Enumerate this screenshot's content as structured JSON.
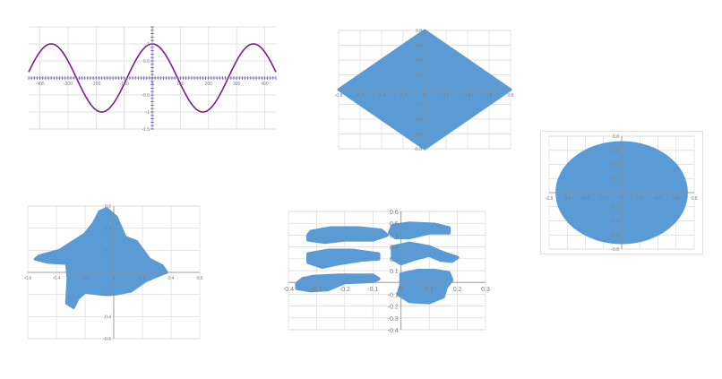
{
  "colors": {
    "sine": "#7b1f8a",
    "sine_axis_marks": "#6a5acd",
    "fill": "#5b9bd5",
    "grid": "#d9d9d9"
  },
  "chart_data": [
    {
      "id": "sine",
      "type": "line",
      "title": "",
      "series": [
        {
          "name": "",
          "function": "sin(2*pi*x/360 + pi/2)"
        }
      ],
      "xlim": [
        -440,
        440
      ],
      "ylim": [
        -1.5,
        1.5
      ],
      "xticks": [
        -400,
        -300,
        -200,
        -100,
        0,
        100,
        200,
        300,
        400
      ],
      "xtick_labels": [
        "-400",
        "-300",
        "-200",
        "-100",
        "0",
        "100",
        "200",
        "300",
        "400"
      ],
      "yticks": [
        -1.5,
        -1,
        -0.5,
        0.5,
        1
      ],
      "ytick_labels": [
        "-1.5",
        "-1",
        "-0.5",
        "0.5",
        "1"
      ],
      "grid": true,
      "dense_axis_markers": true
    },
    {
      "id": "diamond",
      "type": "area",
      "title": "",
      "shape": [
        [
          0,
          0.8
        ],
        [
          0.8,
          0
        ],
        [
          0,
          -0.8
        ],
        [
          -0.8,
          0
        ]
      ],
      "xlim": [
        -0.8,
        0.8
      ],
      "ylim": [
        -0.8,
        0.8
      ],
      "xticks": [
        -0.8,
        -0.6,
        -0.4,
        -0.2,
        0,
        0.2,
        0.4,
        0.6,
        0.8
      ],
      "xtick_labels": [
        "-0.8",
        "-0.6",
        "-0.4",
        "-0.2",
        "0",
        "0.2",
        "0.4",
        "0.6",
        "0.8"
      ],
      "yticks": [
        0.8,
        0.6,
        0.4,
        0.2,
        -0.2,
        -0.4,
        -0.6,
        -0.8
      ],
      "ytick_labels": [
        "0.8",
        "0.6",
        "0.4",
        "0.2",
        "-0.2",
        "-0.4",
        "-0.6",
        "-0.8"
      ],
      "grid": true
    },
    {
      "id": "circle",
      "type": "area",
      "title": "",
      "shape_circle": {
        "cx": 0,
        "cy": 0,
        "r": 0.73
      },
      "xlim": [
        -0.8,
        0.8
      ],
      "ylim": [
        -0.8,
        0.8
      ],
      "xticks": [
        -0.8,
        -0.6,
        -0.4,
        -0.2,
        0,
        0.2,
        0.4,
        0.6,
        0.8
      ],
      "xtick_labels": [
        "-0.8",
        "-0.6",
        "-0.4",
        "-0.2",
        "0",
        "0.2",
        "0.4",
        "0.6",
        "0.8"
      ],
      "yticks": [
        0.8,
        0.6,
        0.4,
        0.2,
        -0.2,
        -0.4,
        -0.6,
        -0.8
      ],
      "ytick_labels": [
        "0.8",
        "0.6",
        "0.4",
        "0.2",
        "-0.2",
        "-0.4",
        "-0.6",
        "-0.8"
      ],
      "grid": true
    },
    {
      "id": "blob",
      "type": "area",
      "title": "",
      "shape": [
        [
          -0.52,
          0.15
        ],
        [
          -0.38,
          0.2
        ],
        [
          -0.2,
          0.35
        ],
        [
          -0.14,
          0.45
        ],
        [
          -0.1,
          0.55
        ],
        [
          -0.05,
          0.58
        ],
        [
          0.02,
          0.5
        ],
        [
          0.08,
          0.32
        ],
        [
          0.16,
          0.28
        ],
        [
          0.25,
          0.12
        ],
        [
          0.34,
          0.06
        ],
        [
          0.37,
          0.0
        ],
        [
          0.31,
          -0.03
        ],
        [
          0.22,
          -0.08
        ],
        [
          0.12,
          -0.17
        ],
        [
          0.0,
          -0.2
        ],
        [
          -0.08,
          -0.2
        ],
        [
          -0.2,
          -0.18
        ],
        [
          -0.25,
          -0.24
        ],
        [
          -0.28,
          -0.32
        ],
        [
          -0.33,
          -0.28
        ],
        [
          -0.32,
          -0.05
        ],
        [
          -0.33,
          0.08
        ],
        [
          -0.46,
          0.09
        ],
        [
          -0.55,
          0.12
        ]
      ],
      "xlim": [
        -0.6,
        0.6
      ],
      "ylim": [
        -0.6,
        0.6
      ],
      "xticks": [
        -0.6,
        -0.4,
        -0.2,
        0,
        0.2,
        0.4,
        0.6
      ],
      "xtick_labels": [
        "-0.6",
        "-0.4",
        "-0.2",
        "0",
        "0.2",
        "0.4",
        "0.6"
      ],
      "yticks": [
        0.6,
        0.4,
        0.2,
        -0.2,
        -0.4,
        -0.6
      ],
      "ytick_labels": [
        "0.6",
        "0.4",
        "0.2",
        "-0.2",
        "-0.4",
        "-0.6"
      ],
      "grid": true
    },
    {
      "id": "pieces",
      "type": "area",
      "title": "",
      "shapes": [
        [
          [
            -0.32,
            0.43
          ],
          [
            -0.25,
            0.46
          ],
          [
            -0.15,
            0.46
          ],
          [
            -0.07,
            0.44
          ],
          [
            -0.05,
            0.4
          ],
          [
            -0.1,
            0.36
          ],
          [
            -0.2,
            0.36
          ],
          [
            -0.27,
            0.34
          ],
          [
            -0.33,
            0.36
          ],
          [
            -0.33,
            0.4
          ]
        ],
        [
          [
            -0.03,
            0.48
          ],
          [
            0.03,
            0.5
          ],
          [
            0.12,
            0.49
          ],
          [
            0.17,
            0.46
          ],
          [
            0.17,
            0.42
          ],
          [
            0.1,
            0.42
          ],
          [
            0.03,
            0.38
          ],
          [
            -0.02,
            0.38
          ],
          [
            -0.04,
            0.42
          ]
        ],
        [
          [
            -0.33,
            0.24
          ],
          [
            -0.26,
            0.27
          ],
          [
            -0.17,
            0.27
          ],
          [
            -0.08,
            0.24
          ],
          [
            -0.08,
            0.2
          ],
          [
            -0.14,
            0.19
          ],
          [
            -0.22,
            0.16
          ],
          [
            -0.28,
            0.13
          ],
          [
            -0.33,
            0.17
          ]
        ],
        [
          [
            -0.03,
            0.3
          ],
          [
            0.03,
            0.33
          ],
          [
            0.1,
            0.3
          ],
          [
            0.15,
            0.25
          ],
          [
            0.2,
            0.21
          ],
          [
            0.18,
            0.18
          ],
          [
            0.14,
            0.19
          ],
          [
            0.1,
            0.23
          ],
          [
            0.05,
            0.2
          ],
          [
            0.0,
            0.16
          ],
          [
            -0.03,
            0.2
          ]
        ],
        [
          [
            -0.35,
            0.03
          ],
          [
            -0.31,
            0.05
          ],
          [
            -0.22,
            0.06
          ],
          [
            -0.1,
            0.06
          ],
          [
            -0.08,
            0.03
          ],
          [
            -0.1,
            0.01
          ],
          [
            -0.2,
            0.0
          ],
          [
            -0.23,
            -0.03
          ],
          [
            -0.26,
            -0.06
          ],
          [
            -0.32,
            -0.07
          ],
          [
            -0.37,
            -0.05
          ],
          [
            -0.37,
            -0.01
          ]
        ],
        [
          [
            0.0,
            0.07
          ],
          [
            0.06,
            0.1
          ],
          [
            0.12,
            0.1
          ],
          [
            0.17,
            0.08
          ],
          [
            0.18,
            0.02
          ],
          [
            0.16,
            -0.04
          ],
          [
            0.15,
            -0.12
          ],
          [
            0.1,
            -0.17
          ],
          [
            0.03,
            -0.16
          ],
          [
            -0.01,
            -0.1
          ],
          [
            0.0,
            -0.02
          ]
        ]
      ],
      "xlim": [
        -0.4,
        0.3
      ],
      "ylim": [
        -0.4,
        0.6
      ],
      "xticks": [
        -0.4,
        -0.3,
        -0.2,
        -0.1,
        0,
        0.1,
        0.2,
        0.3
      ],
      "xtick_labels": [
        "-0.4",
        "-0.3",
        "-0.2",
        "-0.1",
        "0",
        "0.1",
        "0.2",
        "0.3"
      ],
      "yticks": [
        0.6,
        0.5,
        0.4,
        0.3,
        0.2,
        0.1,
        -0.1,
        -0.2,
        -0.3,
        -0.4
      ],
      "ytick_labels": [
        "0.6",
        "0.5",
        "0.4",
        "0.3",
        "0.2",
        "0.1",
        "-0.1",
        "-0.2",
        "-0.3",
        "-0.4"
      ],
      "grid": true
    }
  ]
}
